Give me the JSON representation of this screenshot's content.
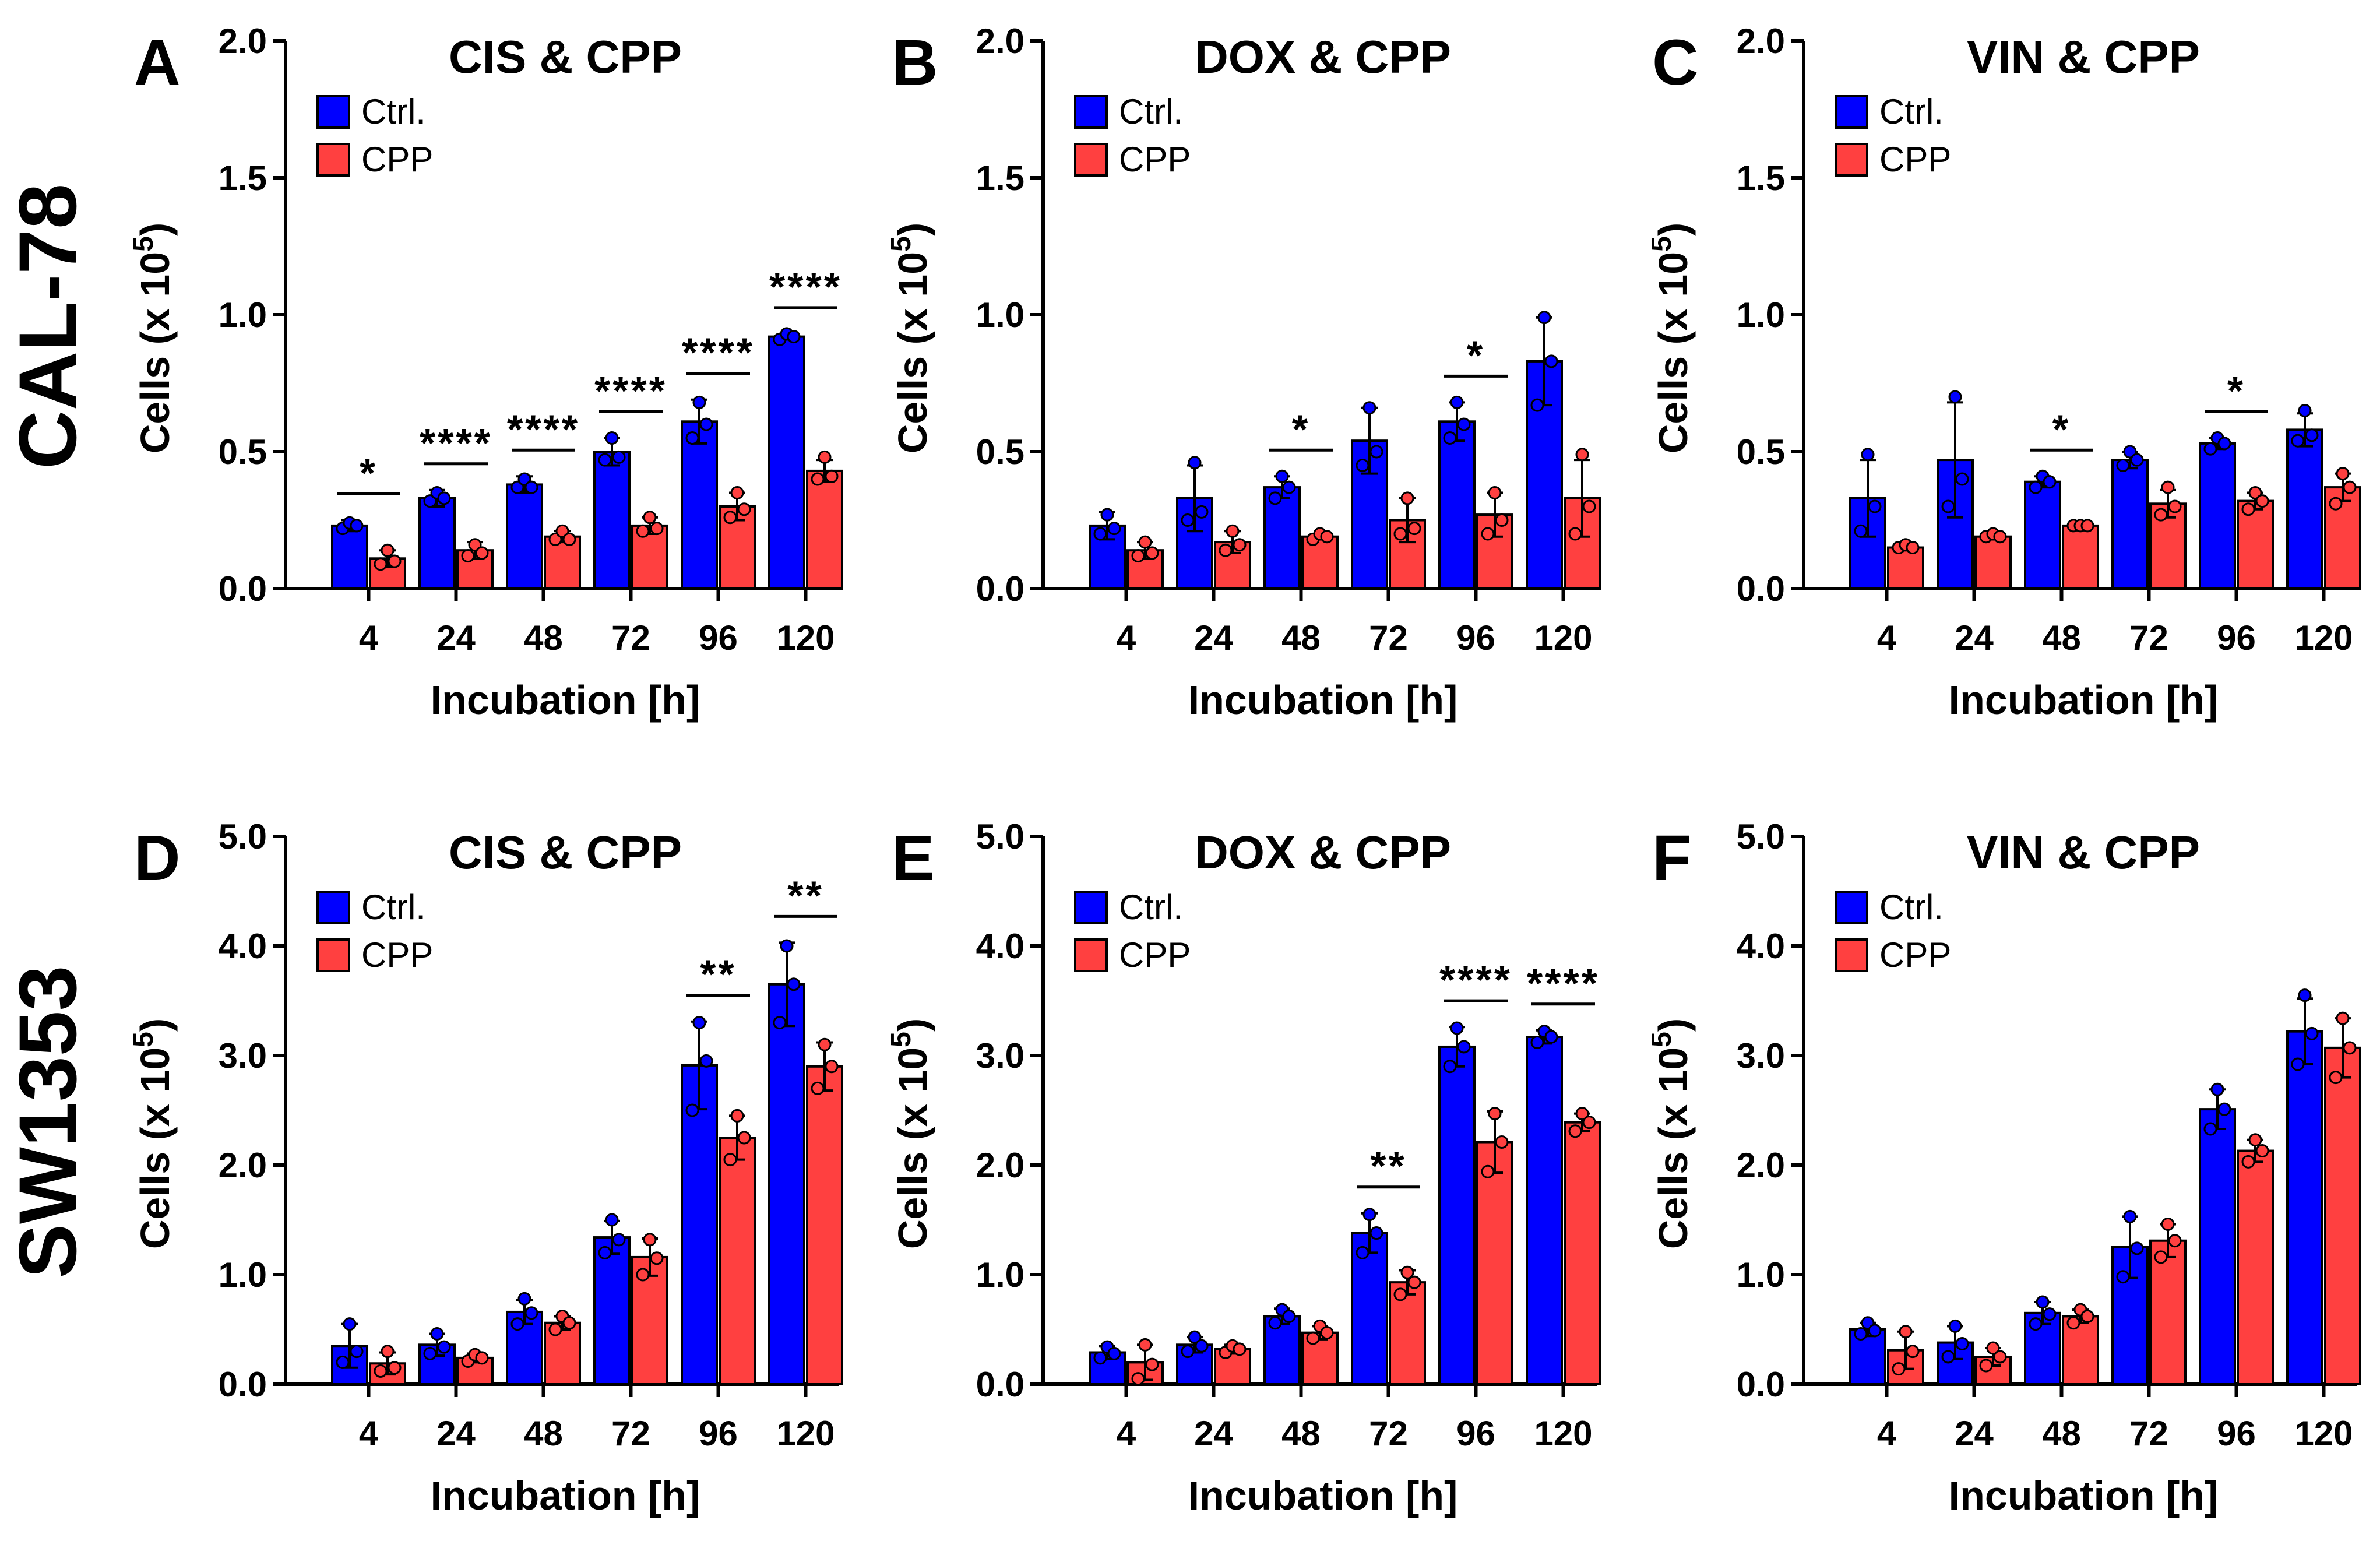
{
  "row_labels": [
    "CAL-78",
    "SW1353"
  ],
  "colors": {
    "ctrl": "#0000ff",
    "cpp": "#ff4040",
    "axis": "#000000"
  },
  "chart_data": [
    {
      "panel": "A",
      "type": "bar",
      "title": "CIS & CPP",
      "xlabel": "Incubation [h]",
      "ylabel": "Cells (x 10",
      "ylabel_sup": "5",
      "ylabel_close": ")",
      "ylim": [
        0,
        2.0
      ],
      "yticks": [
        "0.0",
        "0.5",
        "1.0",
        "1.5",
        "2.0"
      ],
      "categories": [
        "4",
        "24",
        "48",
        "72",
        "96",
        "120"
      ],
      "series": [
        {
          "name": "Ctrl.",
          "values": [
            0.23,
            0.33,
            0.38,
            0.5,
            0.61,
            0.92
          ],
          "errors": [
            0.02,
            0.03,
            0.03,
            0.05,
            0.08,
            0.01
          ],
          "points": [
            [
              0.22,
              0.24,
              0.23
            ],
            [
              0.32,
              0.35,
              0.33
            ],
            [
              0.37,
              0.4,
              0.37
            ],
            [
              0.47,
              0.55,
              0.48
            ],
            [
              0.55,
              0.68,
              0.6
            ],
            [
              0.91,
              0.93,
              0.92
            ]
          ]
        },
        {
          "name": "CPP",
          "values": [
            0.11,
            0.14,
            0.19,
            0.23,
            0.3,
            0.43
          ],
          "errors": [
            0.03,
            0.03,
            0.02,
            0.03,
            0.05,
            0.04
          ],
          "points": [
            [
              0.09,
              0.14,
              0.1
            ],
            [
              0.12,
              0.16,
              0.13
            ],
            [
              0.18,
              0.21,
              0.18
            ],
            [
              0.21,
              0.26,
              0.22
            ],
            [
              0.26,
              0.35,
              0.29
            ],
            [
              0.4,
              0.48,
              0.41
            ]
          ]
        }
      ],
      "significance": [
        "*",
        "****",
        "****",
        "****",
        "****",
        "****"
      ]
    },
    {
      "panel": "B",
      "type": "bar",
      "title": "DOX & CPP",
      "xlabel": "Incubation [h]",
      "ylabel": "Cells (x 10",
      "ylabel_sup": "5",
      "ylabel_close": ")",
      "ylim": [
        0,
        2.0
      ],
      "yticks": [
        "0.0",
        "0.5",
        "1.0",
        "1.5",
        "2.0"
      ],
      "categories": [
        "4",
        "24",
        "48",
        "72",
        "96",
        "120"
      ],
      "series": [
        {
          "name": "Ctrl.",
          "values": [
            0.23,
            0.33,
            0.37,
            0.54,
            0.61,
            0.83
          ],
          "errors": [
            0.05,
            0.12,
            0.04,
            0.12,
            0.07,
            0.16
          ],
          "points": [
            [
              0.2,
              0.27,
              0.22
            ],
            [
              0.25,
              0.46,
              0.28
            ],
            [
              0.33,
              0.41,
              0.37
            ],
            [
              0.45,
              0.66,
              0.5
            ],
            [
              0.55,
              0.68,
              0.6
            ],
            [
              0.67,
              0.99,
              0.83
            ]
          ]
        },
        {
          "name": "CPP",
          "values": [
            0.14,
            0.17,
            0.19,
            0.25,
            0.27,
            0.33
          ],
          "errors": [
            0.03,
            0.04,
            0.01,
            0.08,
            0.08,
            0.14
          ],
          "points": [
            [
              0.12,
              0.17,
              0.13
            ],
            [
              0.14,
              0.21,
              0.16
            ],
            [
              0.18,
              0.2,
              0.19
            ],
            [
              0.2,
              0.33,
              0.22
            ],
            [
              0.2,
              0.35,
              0.25
            ],
            [
              0.2,
              0.49,
              0.3
            ]
          ]
        }
      ],
      "significance": [
        "",
        "",
        "*",
        "",
        "*",
        ""
      ]
    },
    {
      "panel": "C",
      "type": "bar",
      "title": "VIN & CPP",
      "xlabel": "Incubation [h]",
      "ylabel": "Cells (x 10",
      "ylabel_sup": "5",
      "ylabel_close": ")",
      "ylim": [
        0,
        2.0
      ],
      "yticks": [
        "0.0",
        "0.5",
        "1.0",
        "1.5",
        "2.0"
      ],
      "categories": [
        "4",
        "24",
        "48",
        "72",
        "96",
        "120"
      ],
      "series": [
        {
          "name": "Ctrl.",
          "values": [
            0.33,
            0.47,
            0.39,
            0.47,
            0.53,
            0.58
          ],
          "errors": [
            0.14,
            0.21,
            0.02,
            0.03,
            0.02,
            0.06
          ],
          "points": [
            [
              0.21,
              0.49,
              0.3
            ],
            [
              0.3,
              0.7,
              0.4
            ],
            [
              0.37,
              0.41,
              0.39
            ],
            [
              0.45,
              0.5,
              0.47
            ],
            [
              0.51,
              0.55,
              0.53
            ],
            [
              0.54,
              0.65,
              0.56
            ]
          ]
        },
        {
          "name": "CPP",
          "values": [
            0.15,
            0.19,
            0.23,
            0.31,
            0.32,
            0.37
          ],
          "errors": [
            0.01,
            0.01,
            0.01,
            0.05,
            0.03,
            0.05
          ],
          "points": [
            [
              0.15,
              0.16,
              0.15
            ],
            [
              0.19,
              0.2,
              0.19
            ],
            [
              0.23,
              0.23,
              0.23
            ],
            [
              0.27,
              0.37,
              0.3
            ],
            [
              0.29,
              0.35,
              0.32
            ],
            [
              0.31,
              0.42,
              0.37
            ]
          ]
        }
      ],
      "significance": [
        "",
        "",
        "*",
        "",
        "*",
        ""
      ]
    },
    {
      "panel": "D",
      "type": "bar",
      "title": "CIS & CPP",
      "xlabel": "Incubation [h]",
      "ylabel": "Cells (x 10",
      "ylabel_sup": "5",
      "ylabel_close": ")",
      "ylim": [
        0,
        5.0
      ],
      "yticks": [
        "0.0",
        "1.0",
        "2.0",
        "3.0",
        "4.0",
        "5.0"
      ],
      "categories": [
        "4",
        "24",
        "48",
        "72",
        "96",
        "120"
      ],
      "series": [
        {
          "name": "Ctrl.",
          "values": [
            0.35,
            0.36,
            0.66,
            1.34,
            2.91,
            3.65
          ],
          "errors": [
            0.2,
            0.1,
            0.11,
            0.15,
            0.4,
            0.38
          ],
          "points": [
            [
              0.2,
              0.55,
              0.3
            ],
            [
              0.28,
              0.46,
              0.34
            ],
            [
              0.55,
              0.78,
              0.65
            ],
            [
              1.2,
              1.5,
              1.32
            ],
            [
              2.5,
              3.3,
              2.95
            ],
            [
              3.3,
              4.0,
              3.65
            ]
          ]
        },
        {
          "name": "CPP",
          "values": [
            0.19,
            0.24,
            0.56,
            1.16,
            2.25,
            2.9
          ],
          "errors": [
            0.1,
            0.04,
            0.06,
            0.17,
            0.2,
            0.22
          ],
          "points": [
            [
              0.12,
              0.3,
              0.15
            ],
            [
              0.21,
              0.27,
              0.24
            ],
            [
              0.5,
              0.62,
              0.56
            ],
            [
              1.0,
              1.32,
              1.15
            ],
            [
              2.05,
              2.45,
              2.25
            ],
            [
              2.7,
              3.1,
              2.9
            ]
          ]
        }
      ],
      "significance": [
        "",
        "",
        "",
        "",
        "**",
        "**"
      ]
    },
    {
      "panel": "E",
      "type": "bar",
      "title": "DOX & CPP",
      "xlabel": "Incubation [h]",
      "ylabel": "Cells (x 10",
      "ylabel_sup": "5",
      "ylabel_close": ")",
      "ylim": [
        0,
        5.0
      ],
      "yticks": [
        "0.0",
        "1.0",
        "2.0",
        "3.0",
        "4.0",
        "5.0"
      ],
      "categories": [
        "4",
        "24",
        "48",
        "72",
        "96",
        "120"
      ],
      "series": [
        {
          "name": "Ctrl.",
          "values": [
            0.29,
            0.36,
            0.62,
            1.38,
            3.08,
            3.17
          ],
          "errors": [
            0.06,
            0.07,
            0.07,
            0.18,
            0.18,
            0.06
          ],
          "points": [
            [
              0.24,
              0.34,
              0.28
            ],
            [
              0.3,
              0.43,
              0.35
            ],
            [
              0.56,
              0.68,
              0.62
            ],
            [
              1.2,
              1.55,
              1.38
            ],
            [
              2.9,
              3.25,
              3.08
            ],
            [
              3.12,
              3.22,
              3.17
            ]
          ]
        },
        {
          "name": "CPP",
          "values": [
            0.2,
            0.32,
            0.47,
            0.93,
            2.21,
            2.39
          ],
          "errors": [
            0.16,
            0.04,
            0.06,
            0.11,
            0.28,
            0.08
          ],
          "points": [
            [
              0.05,
              0.36,
              0.18
            ],
            [
              0.29,
              0.35,
              0.32
            ],
            [
              0.42,
              0.53,
              0.47
            ],
            [
              0.82,
              1.02,
              0.93
            ],
            [
              1.94,
              2.47,
              2.21
            ],
            [
              2.31,
              2.47,
              2.39
            ]
          ]
        }
      ],
      "significance": [
        "",
        "",
        "",
        "**",
        "****",
        "****"
      ]
    },
    {
      "panel": "F",
      "type": "bar",
      "title": "VIN & CPP",
      "xlabel": "Incubation [h]",
      "ylabel": "Cells (x 10",
      "ylabel_sup": "5",
      "ylabel_close": ")",
      "ylim": [
        0,
        5.0
      ],
      "yticks": [
        "0.0",
        "1.0",
        "2.0",
        "3.0",
        "4.0",
        "5.0"
      ],
      "categories": [
        "4",
        "24",
        "48",
        "72",
        "96",
        "120"
      ],
      "series": [
        {
          "name": "Ctrl.",
          "values": [
            0.5,
            0.38,
            0.65,
            1.25,
            2.51,
            3.22
          ],
          "errors": [
            0.06,
            0.15,
            0.1,
            0.28,
            0.18,
            0.3
          ],
          "points": [
            [
              0.46,
              0.56,
              0.49
            ],
            [
              0.25,
              0.53,
              0.37
            ],
            [
              0.55,
              0.75,
              0.64
            ],
            [
              0.98,
              1.53,
              1.24
            ],
            [
              2.33,
              2.69,
              2.51
            ],
            [
              2.92,
              3.55,
              3.2
            ]
          ]
        },
        {
          "name": "CPP",
          "values": [
            0.31,
            0.25,
            0.62,
            1.31,
            2.13,
            3.07
          ],
          "errors": [
            0.17,
            0.08,
            0.06,
            0.15,
            0.1,
            0.27
          ],
          "points": [
            [
              0.14,
              0.48,
              0.3
            ],
            [
              0.17,
              0.33,
              0.25
            ],
            [
              0.56,
              0.68,
              0.62
            ],
            [
              1.16,
              1.46,
              1.31
            ],
            [
              2.03,
              2.23,
              2.13
            ],
            [
              2.8,
              3.34,
              3.07
            ]
          ]
        }
      ],
      "significance": [
        "",
        "",
        "",
        "",
        "",
        ""
      ]
    }
  ]
}
